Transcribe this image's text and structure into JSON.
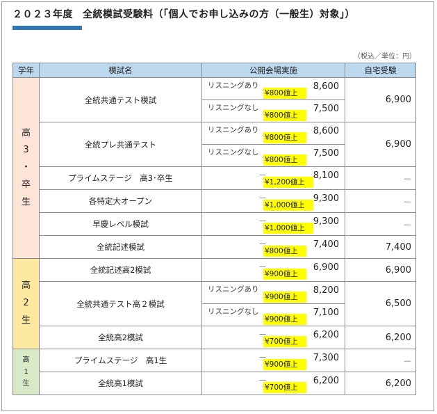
{
  "title": {
    "year": "２０２３年度",
    "text": "全統模試受験料（「個人でお申し込みの方（一般生）対象」）"
  },
  "note": "（税込／単位：円）",
  "headers": [
    "学年",
    "模試名",
    "公開会場実施",
    "自宅受験"
  ],
  "grades": {
    "g3": "高\n3\n・\n卒\n生",
    "g2": "高\n2\n生",
    "g1": "高\n1\n生"
  },
  "rows": [
    {
      "name": "全統共通テスト模試",
      "home": "6,900",
      "prices": [
        {
          "label": "リスニングあり",
          "up": "¥800値上",
          "amount": "8,600"
        },
        {
          "label": "リスニングなし",
          "up": "¥800値上",
          "amount": "7,500"
        }
      ]
    },
    {
      "name": "全統プレ共通テスト",
      "home": "6,900",
      "prices": [
        {
          "label": "リスニングあり",
          "up": "¥800値上",
          "amount": "8,600"
        },
        {
          "label": "リスニングなし",
          "up": "¥800値上",
          "amount": "7,500"
        }
      ]
    },
    {
      "name": "プライムステージ　高3･卒生",
      "home": "—",
      "prices": [
        {
          "label": "—",
          "up": "¥1,200値上",
          "amount": "8,100"
        }
      ]
    },
    {
      "name": "各特定大オープン",
      "home": "—",
      "prices": [
        {
          "label": "—",
          "up": "¥1,000値上",
          "amount": "9,300"
        }
      ]
    },
    {
      "name": "早慶レベル模試",
      "home": "—",
      "prices": [
        {
          "label": "—",
          "up": "¥1,000値上",
          "amount": "9,300"
        }
      ]
    },
    {
      "name": "全統記述模試",
      "home": "7,400",
      "prices": [
        {
          "label": "—",
          "up": "¥800値上",
          "amount": "7,400"
        }
      ]
    },
    {
      "name": "全統記述高2模試",
      "home": "6,900",
      "prices": [
        {
          "label": "—",
          "up": "¥900値上",
          "amount": "6,900"
        }
      ]
    },
    {
      "name": "全統共通テスト高２模試",
      "home": "6,500",
      "prices": [
        {
          "label": "リスニングあり",
          "up": "¥900値上",
          "amount": "8,200"
        },
        {
          "label": "リスニングなし",
          "up": "¥900値上",
          "amount": "7,100"
        }
      ]
    },
    {
      "name": "全統高2模試",
      "home": "6,200",
      "prices": [
        {
          "label": "—",
          "up": "¥700値上",
          "amount": "6,200"
        }
      ]
    },
    {
      "name": "プライムステージ　高1生",
      "home": "—",
      "prices": [
        {
          "label": "—",
          "up": "¥900値上",
          "amount": "7,300"
        }
      ]
    },
    {
      "name": "全統高1模試",
      "home": "6,200",
      "prices": [
        {
          "label": "—",
          "up": "¥700値上",
          "amount": "6,200"
        }
      ]
    }
  ]
}
